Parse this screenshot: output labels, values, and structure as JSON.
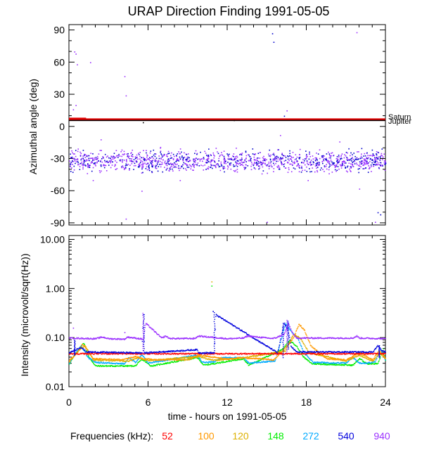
{
  "title": "URAP Direction Finding  1991-05-05",
  "chart_data": [
    {
      "type": "scatter",
      "panel": "azimuth",
      "ylabel": "Azimuthal angle (deg)",
      "ylim": [
        -92,
        95
      ],
      "y_ticks": [
        -90,
        -60,
        -30,
        0,
        30,
        60,
        90
      ],
      "xlim": [
        0,
        24
      ],
      "reference_lines": [
        {
          "name": "Saturn",
          "y": 6.5,
          "color": "#e00000"
        },
        {
          "name": "Jupiter",
          "y": 5.5,
          "color": "#000000"
        }
      ],
      "band": {
        "center": -32,
        "halfwidth": 10
      },
      "outliers": [
        {
          "x": 0.4,
          "y": 70,
          "color": "#9b30ff"
        },
        {
          "x": 0.5,
          "y": 68,
          "color": "#9b30ff"
        },
        {
          "x": 0.6,
          "y": 58,
          "color": "#9b30ff"
        },
        {
          "x": 0.5,
          "y": 20,
          "color": "#9b30ff"
        },
        {
          "x": 0.3,
          "y": 16,
          "color": "#9b30ff"
        },
        {
          "x": 1.6,
          "y": 60,
          "color": "#9b30ff"
        },
        {
          "x": 4.2,
          "y": 47,
          "color": "#9b30ff"
        },
        {
          "x": 4.3,
          "y": 29,
          "color": "#9b30ff"
        },
        {
          "x": 4.3,
          "y": -86,
          "color": "#9b30ff"
        },
        {
          "x": 5.5,
          "y": -60,
          "color": "#9b30ff"
        },
        {
          "x": 5.6,
          "y": 4,
          "color": "#000000"
        },
        {
          "x": 15.4,
          "y": 87,
          "color": "#0000cc"
        },
        {
          "x": 15.5,
          "y": 79,
          "color": "#0000cc"
        },
        {
          "x": 16.3,
          "y": 10,
          "color": "#0000cc"
        },
        {
          "x": 16.5,
          "y": 15,
          "color": "#9b30ff"
        },
        {
          "x": 15.0,
          "y": -89,
          "color": "#9b30ff"
        },
        {
          "x": 21.8,
          "y": 88,
          "color": "#9b30ff"
        },
        {
          "x": 23.4,
          "y": -80,
          "color": "#0000cc"
        },
        {
          "x": 23.6,
          "y": -82,
          "color": "#0000cc"
        },
        {
          "x": 23.2,
          "y": -89,
          "color": "#9b30ff"
        },
        {
          "x": 1.8,
          "y": -50,
          "color": "#9b30ff"
        },
        {
          "x": 8.4,
          "y": -50,
          "color": "#9b30ff"
        },
        {
          "x": 18.1,
          "y": -50,
          "color": "#9b30ff"
        },
        {
          "x": 22.0,
          "y": -58,
          "color": "#9b30ff"
        },
        {
          "x": 12.5,
          "y": 6,
          "color": "#000000"
        },
        {
          "x": 2.4,
          "y": -12,
          "color": "#9b30ff"
        },
        {
          "x": 16.0,
          "y": -8,
          "color": "#9b30ff"
        },
        {
          "x": 20.5,
          "y": -14,
          "color": "#9b30ff"
        }
      ]
    },
    {
      "type": "line",
      "panel": "intensity",
      "ylabel": "Intensity (microvolt/sqrt(Hz))",
      "yscale": "log",
      "ylim": [
        0.01,
        12
      ],
      "y_ticks": [
        0.01,
        0.1,
        1.0,
        10.0
      ],
      "y_tick_labels": [
        "0.01",
        "0.10",
        "1.00",
        "10.00"
      ],
      "xlim": [
        0,
        24
      ],
      "x_ticks": [
        0,
        6,
        12,
        18,
        24
      ],
      "x_tick_labels": [
        "0",
        "6",
        "12",
        "18",
        "24"
      ],
      "xlabel": "time - hours on 1991-05-05",
      "series": [
        {
          "name": "52",
          "color": "#ff0000",
          "level": 0.048,
          "x": [
            0,
            24
          ],
          "y": [
            0.048,
            0.048
          ]
        },
        {
          "name": "100",
          "color": "#ff9900",
          "level": 0.035,
          "x": [
            0,
            0.6,
            1.0,
            1.3,
            1.8,
            4.0,
            5.0,
            5.6,
            6.5,
            9.0,
            9.8,
            12.0,
            13.0,
            15.5,
            16.3,
            17.0,
            17.4,
            17.8,
            18.3,
            19.5,
            21.0,
            22.0,
            23.0,
            23.5,
            24.0
          ],
          "y": [
            0.035,
            0.05,
            0.075,
            0.06,
            0.038,
            0.036,
            0.042,
            0.038,
            0.036,
            0.036,
            0.045,
            0.037,
            0.04,
            0.036,
            0.06,
            0.1,
            0.19,
            0.15,
            0.07,
            0.038,
            0.036,
            0.05,
            0.036,
            0.055,
            0.038
          ]
        },
        {
          "name": "120",
          "color": "#ddb000",
          "level": 0.033,
          "x": [
            0,
            0.8,
            1.2,
            1.8,
            4.5,
            5.2,
            6.0,
            9.8,
            11.0,
            13.3,
            16.4,
            17.0,
            17.5,
            18.2,
            21.0,
            22.0,
            23.0,
            23.6,
            24.0
          ],
          "y": [
            0.033,
            0.06,
            0.07,
            0.036,
            0.034,
            0.04,
            0.035,
            0.042,
            0.035,
            0.04,
            0.055,
            0.12,
            0.1,
            0.05,
            0.034,
            0.045,
            0.034,
            0.05,
            0.036
          ]
        },
        {
          "name": "148",
          "color": "#00ee00",
          "level": 0.027,
          "x": [
            0,
            0.6,
            1.1,
            1.5,
            2.0,
            5.0,
            5.5,
            6.2,
            9.7,
            10.2,
            13.2,
            13.6,
            16.2,
            16.7,
            17.2,
            17.8,
            18.4,
            21.5,
            22.0,
            22.6,
            23.4,
            23.8,
            24.0
          ],
          "y": [
            0.03,
            0.055,
            0.08,
            0.04,
            0.027,
            0.027,
            0.037,
            0.027,
            0.04,
            0.028,
            0.038,
            0.028,
            0.06,
            0.09,
            0.07,
            0.04,
            0.03,
            0.028,
            0.038,
            0.03,
            0.03,
            0.06,
            0.032
          ]
        },
        {
          "name": "272",
          "color": "#00aaff",
          "level": 0.031,
          "x": [
            0,
            0.5,
            0.9,
            1.4,
            2.0,
            4.2,
            4.5,
            5.0,
            5.5,
            6.0,
            9.7,
            10.1,
            11.0,
            11.6,
            13.2,
            13.6,
            15.6,
            16.0,
            16.4,
            16.8,
            17.3,
            17.8,
            18.5,
            21.0,
            21.5,
            22.0,
            22.6,
            23.2,
            23.6,
            24.0
          ],
          "y": [
            0.031,
            0.05,
            0.07,
            0.04,
            0.032,
            0.03,
            0.04,
            0.032,
            0.045,
            0.031,
            0.045,
            0.032,
            0.033,
            0.04,
            0.04,
            0.031,
            0.034,
            0.08,
            0.2,
            0.14,
            0.1,
            0.05,
            0.032,
            0.031,
            0.04,
            0.031,
            0.031,
            0.033,
            0.06,
            0.034
          ]
        },
        {
          "name": "540",
          "color": "#0000dd",
          "level": 0.05,
          "x": [
            0,
            0.6,
            0.9,
            1.3,
            5.5,
            5.6,
            5.7,
            9.7,
            9.8,
            11.0,
            11.1,
            15.8,
            16.1,
            16.3,
            16.6,
            16.8,
            17.2,
            23.0,
            23.4,
            23.7,
            24.0
          ],
          "y": [
            0.05,
            0.06,
            0.065,
            0.052,
            0.05,
            0.3,
            0.05,
            0.058,
            0.05,
            0.05,
            0.3,
            0.05,
            0.12,
            0.2,
            0.14,
            0.07,
            0.052,
            0.052,
            0.07,
            0.055,
            0.052
          ]
        },
        {
          "name": "940",
          "color": "#9b30ff",
          "level": 0.095,
          "x": [
            0,
            2.0,
            2.5,
            3.0,
            4.2,
            4.4,
            5.6,
            5.8,
            7.0,
            7.3,
            7.6,
            9.5,
            9.8,
            12.0,
            13.2,
            13.5,
            15.4,
            15.6,
            16.3,
            16.6,
            16.9,
            17.2,
            21.5,
            21.8,
            22.0,
            24.0
          ],
          "y": [
            0.1,
            0.097,
            0.105,
            0.097,
            0.095,
            0.105,
            0.095,
            0.2,
            0.1,
            0.11,
            0.098,
            0.098,
            0.11,
            0.097,
            0.1,
            0.11,
            0.098,
            0.1,
            0.12,
            0.2,
            0.13,
            0.1,
            0.1,
            0.11,
            0.1,
            0.097
          ]
        }
      ],
      "isolated_points": [
        {
          "x": 0.3,
          "y": 0.16,
          "color": "#9b30ff"
        },
        {
          "x": 10.8,
          "y": 1.4,
          "color": "#ddb000"
        },
        {
          "x": 10.8,
          "y": 1.15,
          "color": "#00ee00"
        },
        {
          "x": 10.9,
          "y": 0.35,
          "color": "#0000dd"
        },
        {
          "x": 4.2,
          "y": 0.13,
          "color": "#9b30ff"
        }
      ]
    }
  ],
  "legend": {
    "label": "Frequencies (kHz):",
    "items": [
      {
        "text": "52",
        "color": "#ff0000"
      },
      {
        "text": "100",
        "color": "#ff9900"
      },
      {
        "text": "120",
        "color": "#ddb000"
      },
      {
        "text": "148",
        "color": "#00ee00"
      },
      {
        "text": "272",
        "color": "#00aaff"
      },
      {
        "text": "540",
        "color": "#0000dd"
      },
      {
        "text": "940",
        "color": "#9b30ff"
      }
    ]
  },
  "markers": [
    {
      "text": "Saturn",
      "color": "#000000"
    },
    {
      "text": "Jupiter",
      "color": "#000000"
    }
  ]
}
